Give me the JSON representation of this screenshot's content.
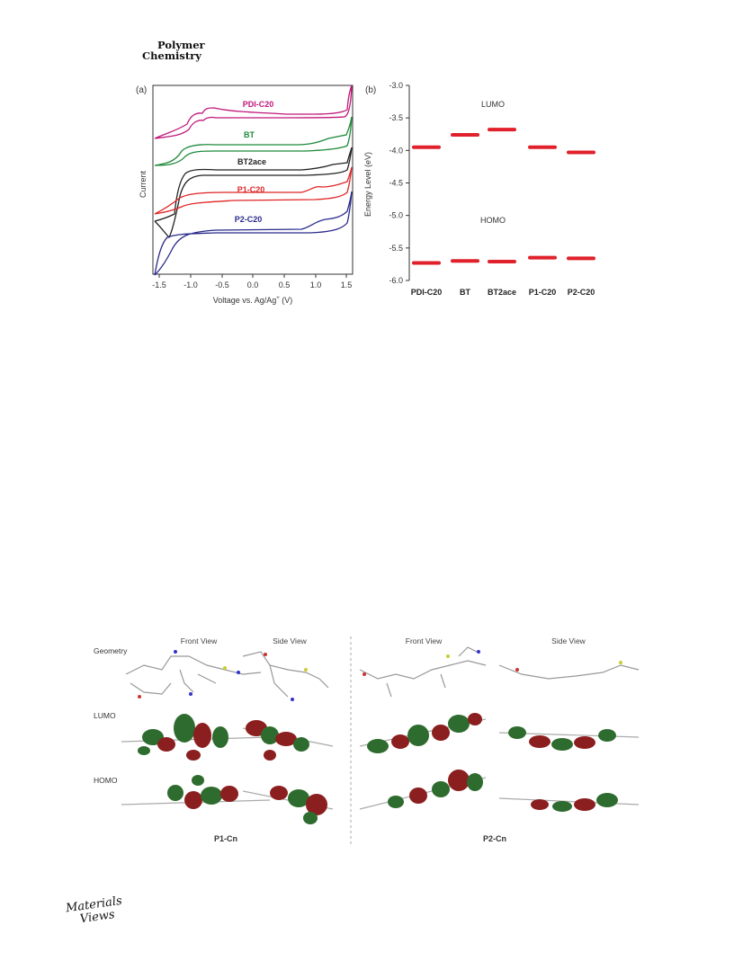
{
  "header": {
    "journal_line1": "Polymer",
    "journal_line2": "Chemistry"
  },
  "figure_top": {
    "panel_a": {
      "label": "(a)",
      "xlabel": "Voltage vs. Ag/Ag",
      "xlabel_sup": "+",
      "xlabel_unit": " (V)",
      "ylabel": "Current",
      "xticks": [
        "-1.5",
        "-1.0",
        "-0.5",
        "0.0",
        "0.5",
        "1.0",
        "1.5"
      ],
      "curves": [
        {
          "name": "PDI-C20",
          "color": "#c0177a"
        },
        {
          "name": "BT",
          "color": "#1e8a3a"
        },
        {
          "name": "BT2ace",
          "color": "#222222"
        },
        {
          "name": "P1-C20",
          "color": "#e02424"
        },
        {
          "name": "P2-C20",
          "color": "#2a2a8c"
        }
      ]
    },
    "panel_b": {
      "label": "(b)",
      "ylabel": "Energy Level (eV)",
      "lumo_label": "LUMO",
      "homo_label": "HOMO",
      "bar_color": "#e0202a"
    }
  },
  "chart_data": {
    "type": "scatter",
    "title": "",
    "xlabel": "",
    "ylabel": "Energy Level (eV)",
    "categories": [
      "PDI-C20",
      "BT",
      "BT2ace",
      "P1-C20",
      "P2-C20"
    ],
    "yticks": [
      "-3.0",
      "-3.5",
      "-4.0",
      "-4.5",
      "-5.0",
      "-5.5",
      "-6.0"
    ],
    "ylim": [
      -6.0,
      -3.0
    ],
    "series": [
      {
        "name": "LUMO",
        "values": [
          -3.95,
          -3.76,
          -3.68,
          -3.95,
          -4.03
        ]
      },
      {
        "name": "HOMO",
        "values": [
          -5.73,
          -5.7,
          -5.71,
          -5.65,
          -5.66
        ]
      }
    ],
    "grid": false,
    "legend": "none"
  },
  "figure_bottom": {
    "view_labels": [
      "Front View",
      "Side View",
      "Front View",
      "Side View"
    ],
    "row_labels": [
      "Geometry",
      "LUMO",
      "HOMO"
    ],
    "group_labels": [
      "P1-Cn",
      "P2-Cn"
    ]
  },
  "footer": {
    "brand_line1": "Materials",
    "brand_line2": "Views"
  }
}
